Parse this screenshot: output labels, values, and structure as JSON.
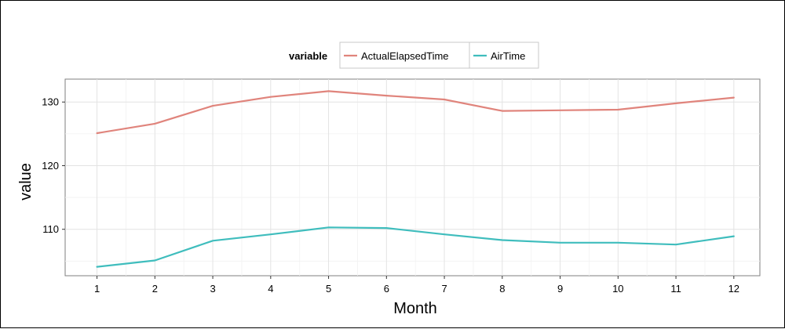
{
  "chart_data": {
    "type": "line",
    "x": [
      1,
      2,
      3,
      4,
      5,
      6,
      7,
      8,
      9,
      10,
      11,
      12
    ],
    "series": [
      {
        "name": "ActualElapsedTime",
        "color": "#e0847c",
        "values": [
          125.1,
          126.6,
          129.4,
          130.8,
          131.7,
          131.0,
          130.4,
          128.6,
          128.7,
          128.8,
          129.8,
          130.7
        ]
      },
      {
        "name": "AirTime",
        "color": "#3fbdbd",
        "values": [
          104.1,
          105.1,
          108.2,
          109.2,
          110.3,
          110.2,
          109.2,
          108.3,
          107.9,
          107.9,
          107.6,
          108.9
        ]
      }
    ],
    "xlabel": "Month",
    "ylabel": "value",
    "legend_title": "variable",
    "legend_position": "top",
    "xlim": [
      0.45,
      12.45
    ],
    "ylim": [
      102.7,
      133.6
    ],
    "x_ticks": [
      1,
      2,
      3,
      4,
      5,
      6,
      7,
      8,
      9,
      10,
      11,
      12
    ],
    "y_ticks": [
      110,
      120,
      130
    ],
    "y_minor_ticks": [
      105,
      115,
      125
    ],
    "grid": true
  }
}
